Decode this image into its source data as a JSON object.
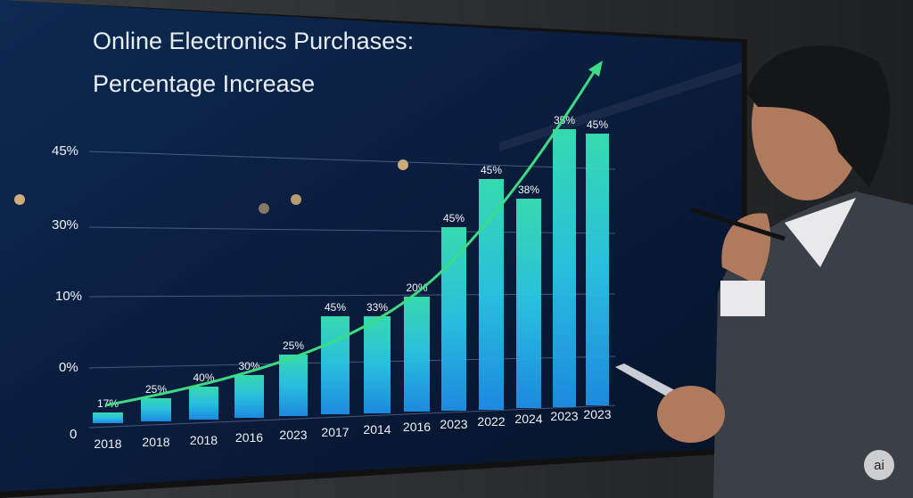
{
  "screen": {
    "title_lines": [
      "Online Electronics Purchases:",
      "Percentage Increase"
    ],
    "y_axis_labels": [
      "45%",
      "30%",
      "10%",
      "0%",
      "0"
    ],
    "bars": [
      {
        "label": "17%",
        "year": "2018"
      },
      {
        "label": "25%",
        "year": "2018"
      },
      {
        "label": "40%",
        "year": "2018"
      },
      {
        "label": "30%",
        "year": "2016"
      },
      {
        "label": "25%",
        "year": "2023"
      },
      {
        "label": "45%",
        "year": "2017"
      },
      {
        "label": "33%",
        "year": "2014"
      },
      {
        "label": "20%",
        "year": "2016"
      },
      {
        "label": "45%",
        "year": "2023"
      },
      {
        "label": "45%",
        "year": "2022"
      },
      {
        "label": "38%",
        "year": "2024"
      },
      {
        "label": "35%",
        "year": "2023"
      },
      {
        "label": "45%",
        "year": "2023"
      }
    ]
  },
  "badge": "ai"
}
